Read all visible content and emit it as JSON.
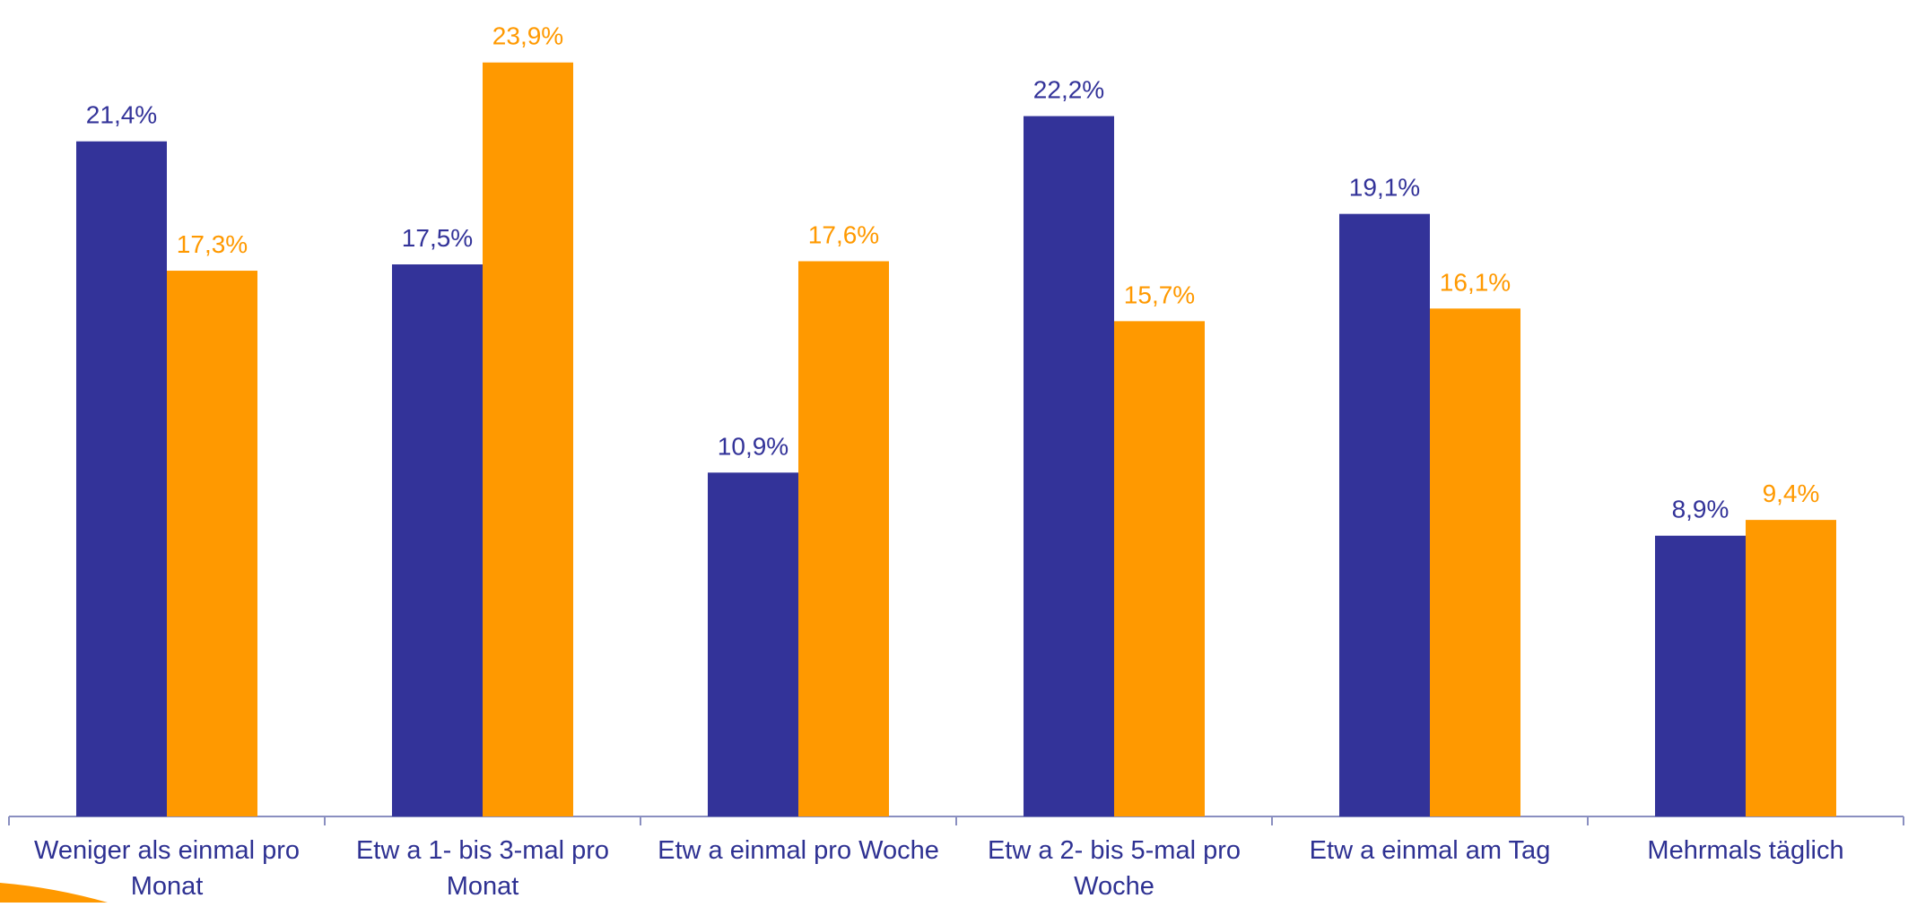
{
  "chart_data": {
    "type": "bar",
    "categories": [
      "Weniger als einmal pro Monat",
      "Etw a 1- bis 3-mal pro Monat",
      "Etw a einmal pro Woche",
      "Etw a 2- bis 5-mal pro Woche",
      "Etw a einmal am Tag",
      "Mehrmals täglich"
    ],
    "series": [
      {
        "color": "#333399",
        "values": [
          21.4,
          17.5,
          10.9,
          22.2,
          19.1,
          8.9
        ],
        "labels": [
          "21,4%",
          "17,5%",
          "10,9%",
          "22,2%",
          "19,1%",
          "8,9%"
        ]
      },
      {
        "color": "#ff9900",
        "values": [
          17.3,
          23.9,
          17.6,
          15.7,
          16.1,
          9.4
        ],
        "labels": [
          "17,3%",
          "23,9%",
          "17,6%",
          "15,7%",
          "16,1%",
          "9,4%"
        ]
      }
    ],
    "title": "",
    "xlabel": "",
    "ylabel": "",
    "ylim": [
      0,
      25
    ],
    "grid": false,
    "legend": "none"
  },
  "colors": {
    "axis": "#8a8fc0",
    "category_text": "#2e3192",
    "accent_orange": "#ff9900"
  }
}
